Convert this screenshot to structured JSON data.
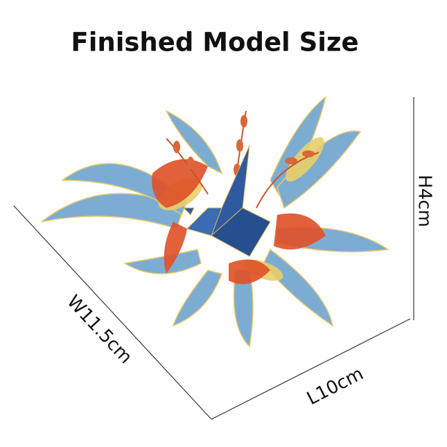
{
  "title": "Finished Model Size",
  "dimensions": {
    "width": "W11.5cm",
    "length": "L10cm",
    "height": "H4cm"
  }
}
